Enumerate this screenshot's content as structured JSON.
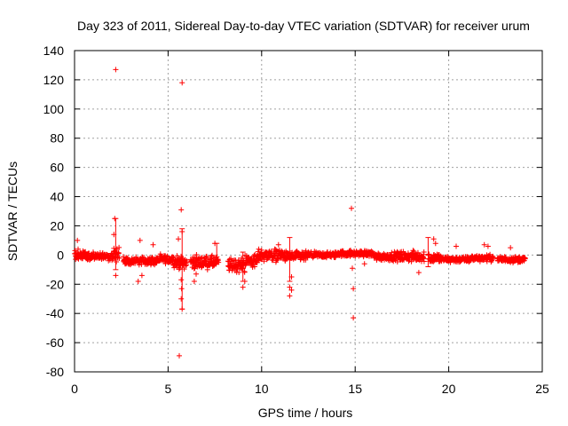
{
  "chart_data": {
    "type": "scatter",
    "title": "Day 323 of 2011, Sidereal Day-to-day VTEC variation (SDTVAR) for receiver urum",
    "xlabel": "GPS time / hours",
    "ylabel": "SDTVAR / TECUs",
    "xlim": [
      0,
      25
    ],
    "ylim": [
      -80,
      140
    ],
    "x_ticks": [
      0,
      5,
      10,
      15,
      20,
      25
    ],
    "y_ticks": [
      -80,
      -60,
      -40,
      -20,
      0,
      20,
      40,
      60,
      80,
      100,
      120,
      140
    ],
    "grid": true,
    "series_color": "#ff0000",
    "marker": "+",
    "dense_segments": [
      {
        "start": 0.0,
        "end": 0.6,
        "center": 0,
        "spread": 5
      },
      {
        "start": 0.6,
        "end": 2.0,
        "center": -1,
        "spread": 4
      },
      {
        "start": 2.0,
        "end": 2.4,
        "center": 0,
        "spread": 8
      },
      {
        "start": 2.6,
        "end": 4.4,
        "center": -4,
        "spread": 4
      },
      {
        "start": 4.4,
        "end": 5.3,
        "center": -3,
        "spread": 4
      },
      {
        "start": 5.3,
        "end": 6.0,
        "center": -5,
        "spread": 6
      },
      {
        "start": 6.2,
        "end": 7.7,
        "center": -5,
        "spread": 6
      },
      {
        "start": 8.2,
        "end": 9.1,
        "center": -7,
        "spread": 7
      },
      {
        "start": 9.1,
        "end": 9.8,
        "center": -4,
        "spread": 7
      },
      {
        "start": 9.8,
        "end": 11.2,
        "center": 0,
        "spread": 6
      },
      {
        "start": 11.2,
        "end": 12.4,
        "center": -1,
        "spread": 5
      },
      {
        "start": 12.4,
        "end": 14.0,
        "center": 0,
        "spread": 3
      },
      {
        "start": 14.0,
        "end": 16.0,
        "center": 1,
        "spread": 3
      },
      {
        "start": 16.0,
        "end": 17.2,
        "center": -1,
        "spread": 4
      },
      {
        "start": 17.2,
        "end": 18.7,
        "center": -1,
        "spread": 5
      },
      {
        "start": 18.9,
        "end": 19.6,
        "center": -2,
        "spread": 5
      },
      {
        "start": 19.6,
        "end": 21.2,
        "center": -3,
        "spread": 3
      },
      {
        "start": 21.2,
        "end": 22.4,
        "center": -2,
        "spread": 3
      },
      {
        "start": 22.6,
        "end": 23.5,
        "center": -3,
        "spread": 3
      },
      {
        "start": 23.5,
        "end": 24.1,
        "center": -3,
        "spread": 3
      }
    ],
    "outliers": [
      {
        "x": 0.15,
        "y": 10
      },
      {
        "x": 2.2,
        "y": 127
      },
      {
        "x": 2.15,
        "y": 25
      },
      {
        "x": 2.1,
        "y": 14
      },
      {
        "x": 2.2,
        "y": -14
      },
      {
        "x": 3.5,
        "y": 10
      },
      {
        "x": 3.4,
        "y": -18
      },
      {
        "x": 3.6,
        "y": -14
      },
      {
        "x": 4.2,
        "y": 7
      },
      {
        "x": 5.55,
        "y": 11
      },
      {
        "x": 5.6,
        "y": -69
      },
      {
        "x": 5.7,
        "y": 31
      },
      {
        "x": 5.75,
        "y": 118
      },
      {
        "x": 5.75,
        "y": 16
      },
      {
        "x": 5.75,
        "y": -37
      },
      {
        "x": 5.7,
        "y": -30
      },
      {
        "x": 5.72,
        "y": -23
      },
      {
        "x": 5.7,
        "y": -17
      },
      {
        "x": 6.4,
        "y": -18
      },
      {
        "x": 6.5,
        "y": -13
      },
      {
        "x": 7.5,
        "y": 8
      },
      {
        "x": 9.0,
        "y": -22
      },
      {
        "x": 9.1,
        "y": -18
      },
      {
        "x": 10.9,
        "y": 7
      },
      {
        "x": 11.5,
        "y": -28
      },
      {
        "x": 11.6,
        "y": -24
      },
      {
        "x": 11.6,
        "y": -15
      },
      {
        "x": 11.5,
        "y": -22
      },
      {
        "x": 14.8,
        "y": 32
      },
      {
        "x": 14.9,
        "y": -23
      },
      {
        "x": 14.9,
        "y": -43
      },
      {
        "x": 14.85,
        "y": -9
      },
      {
        "x": 15.5,
        "y": -6
      },
      {
        "x": 18.4,
        "y": -12
      },
      {
        "x": 19.2,
        "y": 11
      },
      {
        "x": 19.3,
        "y": 8
      },
      {
        "x": 20.4,
        "y": 6
      },
      {
        "x": 21.9,
        "y": 7
      },
      {
        "x": 22.1,
        "y": 6
      },
      {
        "x": 23.3,
        "y": 5
      }
    ],
    "error_bars": [
      {
        "x": 2.2,
        "low": -10,
        "high": 25
      },
      {
        "x": 5.75,
        "low": -37,
        "high": 18
      },
      {
        "x": 7.6,
        "low": -6,
        "high": 8
      },
      {
        "x": 9.0,
        "low": -18,
        "high": 2
      },
      {
        "x": 11.5,
        "low": -18,
        "high": 12
      },
      {
        "x": 18.9,
        "low": -8,
        "high": 12
      }
    ]
  }
}
